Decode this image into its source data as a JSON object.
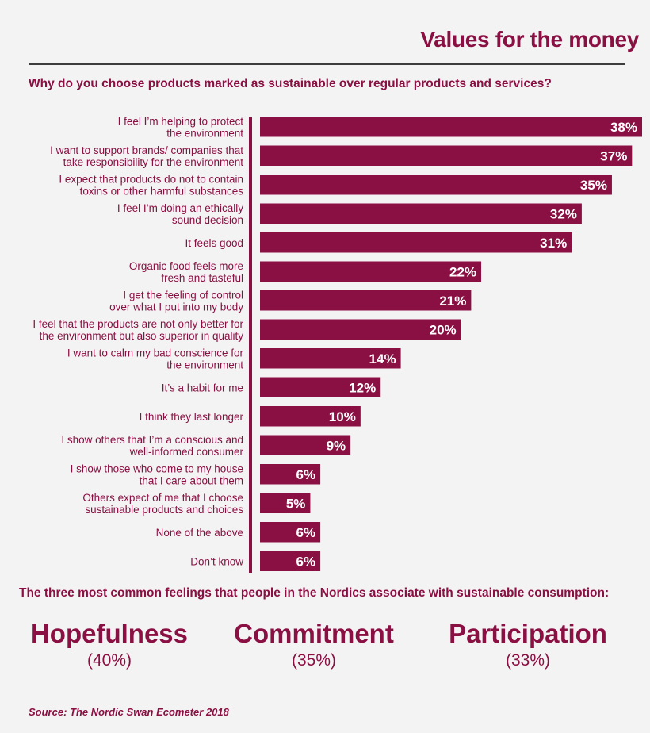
{
  "header": {
    "title": "Values for the money",
    "question": "Why do you choose products marked as sustainable over regular products and services?"
  },
  "chart_data": {
    "type": "bar",
    "orientation": "horizontal",
    "title": "Why do you choose products marked as sustainable over regular products and services?",
    "categories": [
      [
        "I feel I’m helping to protect",
        "the environment"
      ],
      [
        "I want to support brands/ companies that",
        "take responsibility for the environment"
      ],
      [
        "I expect that products do not to contain",
        "toxins or other harmful substances"
      ],
      [
        "I feel I’m doing an ethically",
        "sound decision"
      ],
      [
        "It feels good"
      ],
      [
        "Organic food feels more",
        "fresh and tasteful"
      ],
      [
        "I get the feeling of control",
        "over what I put into my body"
      ],
      [
        "I feel that the products are not only better for",
        "the environment but also superior in quality"
      ],
      [
        "I want to calm my bad conscience for",
        "the environment"
      ],
      [
        "It’s a habit for me"
      ],
      [
        "I think they last longer"
      ],
      [
        "I show others that I’m a conscious and",
        "well-informed consumer"
      ],
      [
        "I show those who come to my house",
        "that I care about them"
      ],
      [
        "Others expect of me that I choose",
        "sustainable products and choices"
      ],
      [
        "None of the above"
      ],
      [
        "Don’t know"
      ]
    ],
    "values": [
      38,
      37,
      35,
      32,
      31,
      22,
      21,
      20,
      14,
      12,
      10,
      9,
      6,
      5,
      6,
      6
    ],
    "value_suffix": "%",
    "xlim": [
      0,
      38
    ],
    "bar_color": "#8a0f42"
  },
  "feelings": {
    "intro": "The three most common feelings that people in the Nordics associate with sustainable consumption:",
    "items": [
      {
        "word": "Hopefulness",
        "pct": "(40%)"
      },
      {
        "word": "Commitment",
        "pct": "(35%)"
      },
      {
        "word": "Participation",
        "pct": "(33%)"
      }
    ]
  },
  "source": "Source: The Nordic Swan Ecometer 2018"
}
